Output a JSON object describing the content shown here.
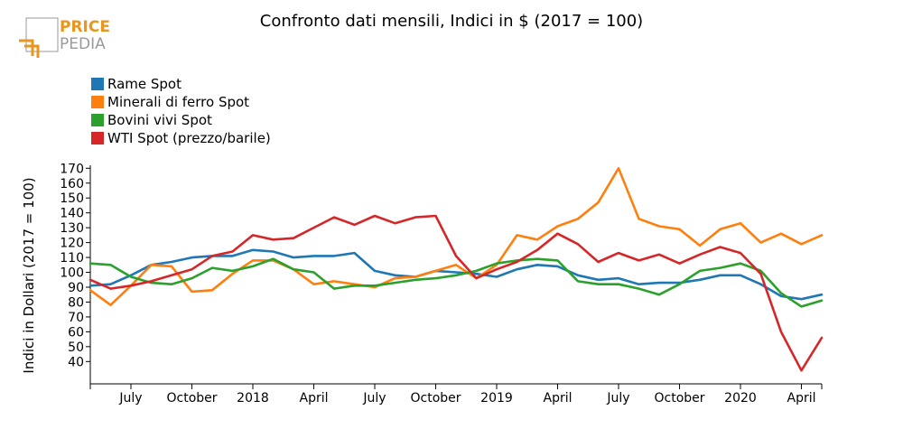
{
  "logo": {
    "line1": "PRICE",
    "line2": "PEDIA",
    "accent": "#e8961e",
    "grey": "#9a9a9a"
  },
  "chart_data": {
    "type": "line",
    "title": "Confronto dati mensili, Indici in $ (2017 = 100)",
    "xlabel": "",
    "ylabel": "Indici in Dollari (2017 = 100)",
    "ylim": [
      25,
      172
    ],
    "yticks": [
      40,
      50,
      60,
      70,
      80,
      90,
      100,
      110,
      120,
      130,
      140,
      150,
      160,
      170
    ],
    "x": [
      "2017-05",
      "2017-06",
      "2017-07",
      "2017-08",
      "2017-09",
      "2017-10",
      "2017-11",
      "2017-12",
      "2018-01",
      "2018-02",
      "2018-03",
      "2018-04",
      "2018-05",
      "2018-06",
      "2018-07",
      "2018-08",
      "2018-09",
      "2018-10",
      "2018-11",
      "2018-12",
      "2019-01",
      "2019-02",
      "2019-03",
      "2019-04",
      "2019-05",
      "2019-06",
      "2019-07",
      "2019-08",
      "2019-09",
      "2019-10",
      "2019-11",
      "2019-12",
      "2020-01",
      "2020-02",
      "2020-03",
      "2020-04",
      "2020-05"
    ],
    "xticks": [
      {
        "label": "July",
        "index": 2
      },
      {
        "label": "October",
        "index": 5
      },
      {
        "label": "2018",
        "index": 8
      },
      {
        "label": "April",
        "index": 11
      },
      {
        "label": "July",
        "index": 14
      },
      {
        "label": "October",
        "index": 17
      },
      {
        "label": "2019",
        "index": 20
      },
      {
        "label": "April",
        "index": 23
      },
      {
        "label": "July",
        "index": 26
      },
      {
        "label": "October",
        "index": 29
      },
      {
        "label": "2020",
        "index": 32
      },
      {
        "label": "April",
        "index": 35
      }
    ],
    "legend_position": "top-left",
    "grid": false,
    "series": [
      {
        "name": "Rame Spot",
        "color": "#1f77b4",
        "values": [
          91,
          92,
          98,
          105,
          107,
          110,
          111,
          111,
          115,
          114,
          110,
          111,
          111,
          113,
          101,
          98,
          97,
          101,
          100,
          99,
          97,
          102,
          105,
          104,
          98,
          95,
          96,
          92,
          93,
          93,
          95,
          98,
          98,
          92,
          84,
          82,
          85
        ]
      },
      {
        "name": "Minerali di ferro Spot",
        "color": "#ff7f0e",
        "values": [
          88,
          78,
          91,
          105,
          104,
          87,
          88,
          99,
          108,
          108,
          102,
          92,
          94,
          92,
          90,
          96,
          97,
          101,
          105,
          96,
          105,
          125,
          122,
          131,
          136,
          147,
          170,
          136,
          131,
          129,
          118,
          129,
          133,
          120,
          126,
          119,
          125
        ]
      },
      {
        "name": "Bovini vivi Spot",
        "color": "#2ca02c",
        "values": [
          106,
          105,
          97,
          93,
          92,
          96,
          103,
          101,
          104,
          109,
          102,
          100,
          89,
          91,
          91,
          93,
          95,
          96,
          98,
          101,
          106,
          108,
          109,
          108,
          94,
          92,
          92,
          89,
          85,
          92,
          101,
          103,
          106,
          101,
          86,
          77,
          81
        ]
      },
      {
        "name": "WTI Spot (prezzo/barile)",
        "color": "#d62728",
        "values": [
          95,
          89,
          91,
          94,
          98,
          102,
          111,
          114,
          125,
          122,
          123,
          130,
          137,
          132,
          138,
          133,
          137,
          138,
          111,
          96,
          102,
          107,
          115,
          126,
          119,
          107,
          113,
          108,
          112,
          106,
          112,
          117,
          113,
          99,
          60,
          34,
          56
        ]
      }
    ]
  }
}
